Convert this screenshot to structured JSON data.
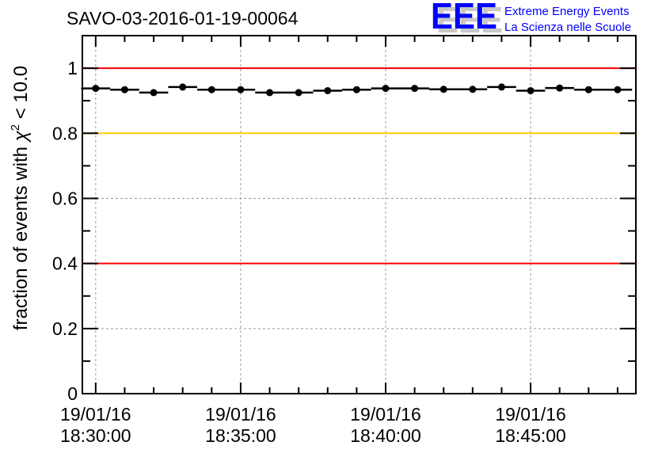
{
  "chart_data": {
    "type": "scatter",
    "title": "SAVO-03-2016-01-19-00064",
    "ylabel_prefix": "fraction of events with ",
    "ylabel_symbol": "χ",
    "ylabel_sup": "2",
    "ylabel_suffix": " < 10.0",
    "xlabel": "",
    "ylim": [
      0,
      1.1
    ],
    "xlim_minutes_after_1830": [
      -0.46,
      18.63
    ],
    "grid": true,
    "yticks": [
      "0",
      "0.2",
      "0.4",
      "0.6",
      "0.8",
      "1"
    ],
    "ytick_values": [
      0,
      0.2,
      0.4,
      0.6,
      0.8,
      1.0
    ],
    "xticks": [
      {
        "minute": 0,
        "date": "19/01/16",
        "time": "18:30:00"
      },
      {
        "minute": 5,
        "date": "19/01/16",
        "time": "18:35:00"
      },
      {
        "minute": 10,
        "date": "19/01/16",
        "time": "18:40:00"
      },
      {
        "minute": 15,
        "date": "19/01/16",
        "time": "18:45:00"
      }
    ],
    "reference_lines": [
      {
        "y": 1.0,
        "color": "#ff0000"
      },
      {
        "y": 0.8,
        "color": "#ffcc00"
      },
      {
        "y": 0.4,
        "color": "#ff0000"
      }
    ],
    "bin_width_minutes": 1,
    "x_minutes": [
      0,
      1,
      2,
      3,
      4,
      5,
      6,
      7,
      8,
      9,
      10,
      11,
      12,
      13,
      14,
      15,
      16,
      17,
      18
    ],
    "values": [
      0.938,
      0.934,
      0.925,
      0.942,
      0.934,
      0.934,
      0.925,
      0.925,
      0.931,
      0.934,
      0.938,
      0.938,
      0.935,
      0.935,
      0.942,
      0.931,
      0.939,
      0.934,
      0.934
    ]
  },
  "logo": {
    "mark": "EEE",
    "line1": "Extreme Energy Events",
    "line2": "La Scienza nelle Scuole",
    "color": "#0000ff"
  }
}
